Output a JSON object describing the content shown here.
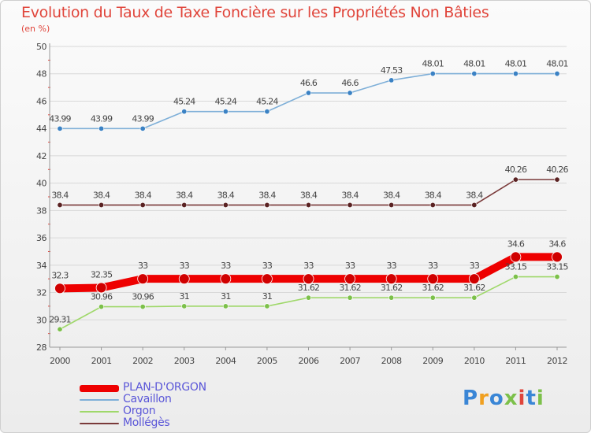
{
  "title": "Evolution du Taux de Taxe Foncière sur les Propriétés Non Bâties",
  "unit": "(en %)",
  "logo": {
    "text": "Proxiti"
  },
  "colors": {
    "title": "#e0453b",
    "legend_text": "#5a56d8",
    "grid": "#d8d8d8"
  },
  "chart_data": {
    "type": "line",
    "title": "Evolution du Taux de Taxe Foncière sur les Propriétés Non Bâties",
    "ylabel": "(en %)",
    "xlabel": "",
    "x": [
      "2000",
      "2001",
      "2002",
      "2003",
      "2004",
      "2005",
      "2006",
      "2007",
      "2008",
      "2009",
      "2010",
      "2011",
      "2012"
    ],
    "ylim": [
      28,
      50
    ],
    "yticks": [
      28,
      30,
      32,
      34,
      36,
      38,
      40,
      42,
      44,
      46,
      48,
      50
    ],
    "grid": "horizontal",
    "legend_position": "bottom-left",
    "series": [
      {
        "name": "Cavaillon",
        "color": "#7eafd8",
        "marker": "#3b82c4",
        "values": [
          43.99,
          43.99,
          43.99,
          45.24,
          45.24,
          45.24,
          46.6,
          46.6,
          47.53,
          48.01,
          48.01,
          48.01,
          48.01
        ],
        "labels": [
          "43.99",
          "43.99",
          "43.99",
          "45.24",
          "45.24",
          "45.24",
          "46.6",
          "46.6",
          "47.53",
          "48.01",
          "48.01",
          "48.01",
          "48.01"
        ]
      },
      {
        "name": "Mollégès",
        "color": "#7a3a3a",
        "marker": "#5a2222",
        "values": [
          38.4,
          38.4,
          38.4,
          38.4,
          38.4,
          38.4,
          38.4,
          38.4,
          38.4,
          38.4,
          38.4,
          40.26,
          40.26
        ],
        "labels": [
          "38.4",
          "38.4",
          "38.4",
          "38.4",
          "38.4",
          "38.4",
          "38.4",
          "38.4",
          "38.4",
          "38.4",
          "38.4",
          "40.26",
          "40.26"
        ]
      },
      {
        "name": "PLAN-D'ORGON",
        "color": "#ee0000",
        "marker": "#d00000",
        "thick": true,
        "values": [
          32.3,
          32.35,
          33,
          33,
          33,
          33,
          33,
          33,
          33,
          33,
          33,
          34.6,
          34.6
        ],
        "labels": [
          "32.3",
          "32.35",
          "33",
          "33",
          "33",
          "33",
          "33",
          "33",
          "33",
          "33",
          "33",
          "34.6",
          "34.6"
        ]
      },
      {
        "name": "Orgon",
        "color": "#9fd86a",
        "marker": "#7cc04a",
        "values": [
          29.31,
          30.96,
          30.96,
          31,
          31,
          31,
          31.62,
          31.62,
          31.62,
          31.62,
          31.62,
          33.15,
          33.15
        ],
        "labels": [
          "29.31",
          "30.96",
          "30.96",
          "31",
          "31",
          "31",
          "31.62",
          "31.62",
          "31.62",
          "31.62",
          "31.62",
          "33.15",
          "33.15"
        ]
      }
    ],
    "legend": [
      "PLAN-D'ORGON",
      "Cavaillon",
      "Orgon",
      "Mollégès"
    ]
  }
}
